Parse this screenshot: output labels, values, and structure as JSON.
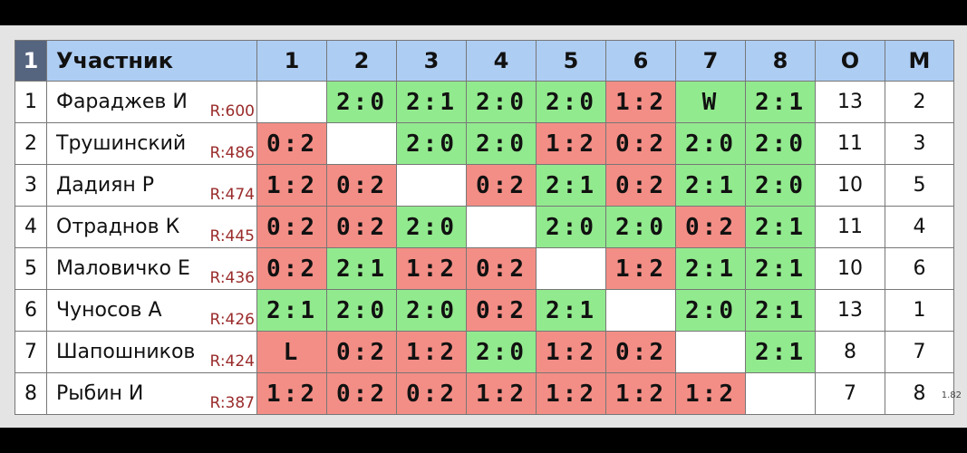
{
  "header": {
    "corner": "1",
    "columns": [
      "Участник",
      "1",
      "2",
      "3",
      "4",
      "5",
      "6",
      "7",
      "8",
      "О",
      "М"
    ]
  },
  "rows": [
    {
      "num": 1,
      "name": "Фараджев И",
      "rating": "R:600",
      "cells": [
        null,
        "2:0",
        "2:1",
        "2:0",
        "2:0",
        "1:2",
        "W",
        "2:1"
      ],
      "cell_colors": [
        null,
        "#92ea8e",
        "#92ea8e",
        "#92ea8e",
        "#92ea8e",
        "#f38e86",
        "#92ea8e",
        "#92ea8e"
      ],
      "points": 13,
      "place": 2
    },
    {
      "num": 2,
      "name": "Трушинский",
      "rating": "R:486",
      "cells": [
        "0:2",
        null,
        "2:0",
        "2:0",
        "1:2",
        "0:2",
        "2:0",
        "2:0"
      ],
      "cell_colors": [
        "#f38e86",
        null,
        "#92ea8e",
        "#92ea8e",
        "#f38e86",
        "#f38e86",
        "#92ea8e",
        "#92ea8e"
      ],
      "points": 11,
      "place": 3
    },
    {
      "num": 3,
      "name": "Дадиян Р",
      "rating": "R:474",
      "cells": [
        "1:2",
        "0:2",
        null,
        "0:2",
        "2:1",
        "0:2",
        "2:1",
        "2:0"
      ],
      "cell_colors": [
        "#f38e86",
        "#f38e86",
        null,
        "#f38e86",
        "#92ea8e",
        "#f38e86",
        "#92ea8e",
        "#92ea8e"
      ],
      "points": 10,
      "place": 5
    },
    {
      "num": 4,
      "name": "Отраднов К",
      "rating": "R:445",
      "cells": [
        "0:2",
        "0:2",
        "2:0",
        null,
        "2:0",
        "2:0",
        "0:2",
        "2:1"
      ],
      "cell_colors": [
        "#f38e86",
        "#f38e86",
        "#92ea8e",
        null,
        "#92ea8e",
        "#92ea8e",
        "#f38e86",
        "#92ea8e"
      ],
      "points": 11,
      "place": 4
    },
    {
      "num": 5,
      "name": "Маловичко Е",
      "rating": "R:436",
      "cells": [
        "0:2",
        "2:1",
        "1:2",
        "0:2",
        null,
        "1:2",
        "2:1",
        "2:1"
      ],
      "cell_colors": [
        "#f38e86",
        "#92ea8e",
        "#f38e86",
        "#f38e86",
        null,
        "#f38e86",
        "#92ea8e",
        "#92ea8e"
      ],
      "points": 10,
      "place": 6
    },
    {
      "num": 6,
      "name": "Чуносов А",
      "rating": "R:426",
      "cells": [
        "2:1",
        "2:0",
        "2:0",
        "0:2",
        "2:1",
        null,
        "2:0",
        "2:1"
      ],
      "cell_colors": [
        "#92ea8e",
        "#92ea8e",
        "#92ea8e",
        "#f38e86",
        "#92ea8e",
        null,
        "#92ea8e",
        "#92ea8e"
      ],
      "points": 13,
      "place": 1
    },
    {
      "num": 7,
      "name": "Шапошников",
      "rating": "R:424",
      "cells": [
        "L",
        "0:2",
        "1:2",
        "2:0",
        "1:2",
        "0:2",
        null,
        "2:1"
      ],
      "cell_colors": [
        "#f38e86",
        "#f38e86",
        "#f38e86",
        "#92ea8e",
        "#f38e86",
        "#f38e86",
        null,
        "#92ea8e"
      ],
      "points": 8,
      "place": 7
    },
    {
      "num": 8,
      "name": "Рыбин И",
      "rating": "R:387",
      "cells": [
        "1:2",
        "0:2",
        "0:2",
        "1:2",
        "1:2",
        "1:2",
        "1:2",
        null
      ],
      "cell_colors": [
        "#f38e86",
        "#f38e86",
        "#f38e86",
        "#f38e86",
        "#f38e86",
        "#f38e86",
        "#f38e86",
        null
      ],
      "points": 7,
      "place": 8
    }
  ],
  "version": "1.82"
}
